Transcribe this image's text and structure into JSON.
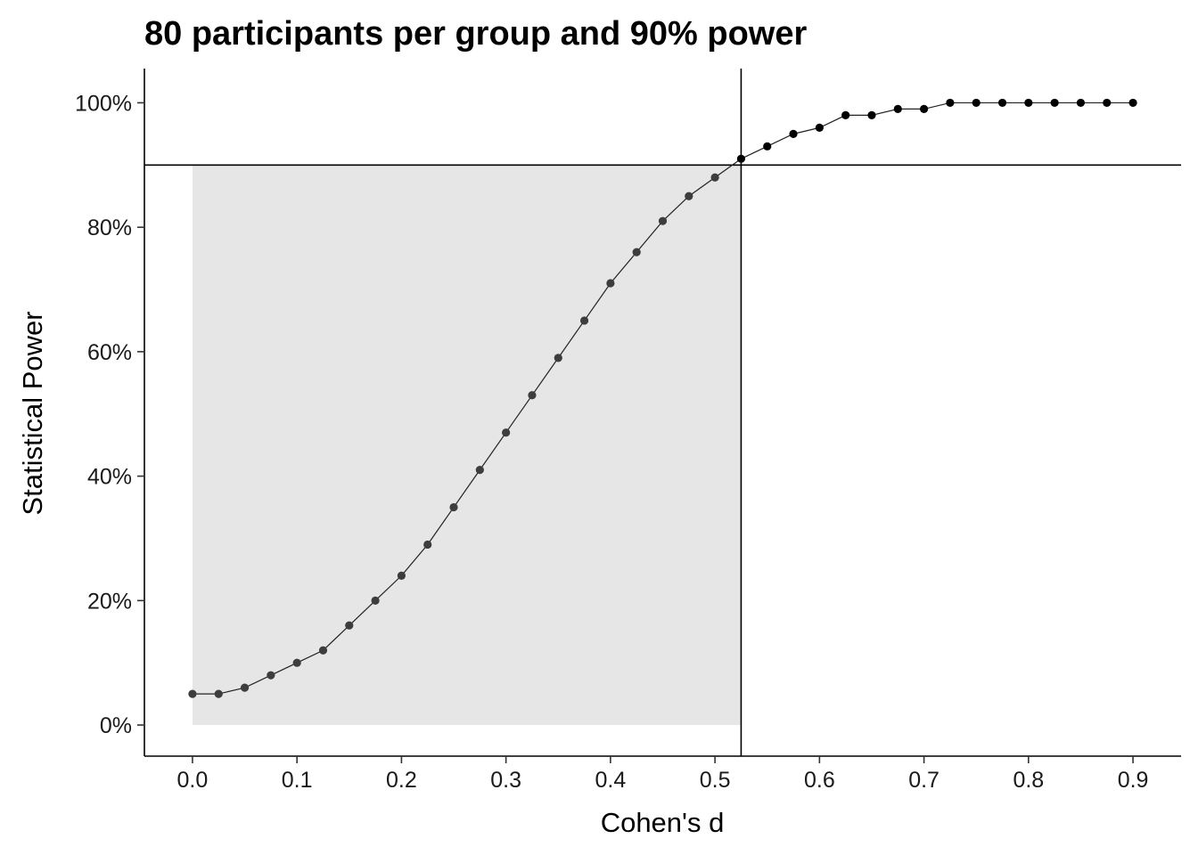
{
  "chart_data": {
    "type": "line",
    "title": "80 participants per group and 90% power",
    "xlabel": "Cohen's d",
    "ylabel": "Statistical Power",
    "xlim": [
      -0.046,
      0.946
    ],
    "ylim": [
      -0.05,
      1.055
    ],
    "x_ticks": [
      0.0,
      0.1,
      0.2,
      0.3,
      0.4,
      0.5,
      0.6,
      0.7,
      0.8,
      0.9
    ],
    "x_tick_labels": [
      "0.0",
      "0.1",
      "0.2",
      "0.3",
      "0.4",
      "0.5",
      "0.6",
      "0.7",
      "0.8",
      "0.9"
    ],
    "y_ticks": [
      0,
      0.2,
      0.4,
      0.6,
      0.8,
      1.0
    ],
    "y_tick_labels": [
      "0%",
      "20%",
      "40%",
      "60%",
      "80%",
      "100%"
    ],
    "grid": false,
    "reference_lines": {
      "power_target": 0.9,
      "effect_size": 0.525
    },
    "shaded_region": {
      "x": [
        0,
        0.525
      ],
      "y": [
        0,
        0.9
      ],
      "color": "#e6e6e6"
    },
    "series": [
      {
        "x": [
          0,
          0.025,
          0.05,
          0.075,
          0.1,
          0.125,
          0.15,
          0.175,
          0.2,
          0.225,
          0.25,
          0.275,
          0.3,
          0.325,
          0.35,
          0.375,
          0.4,
          0.425,
          0.45,
          0.475,
          0.5,
          0.525,
          0.55,
          0.575,
          0.6,
          0.625,
          0.65,
          0.675,
          0.7,
          0.725,
          0.75,
          0.775,
          0.8,
          0.825,
          0.85,
          0.875,
          0.9
        ],
        "y": [
          0.05,
          0.05,
          0.06,
          0.08,
          0.1,
          0.12,
          0.16,
          0.2,
          0.24,
          0.29,
          0.35,
          0.41,
          0.47,
          0.53,
          0.59,
          0.65,
          0.71,
          0.76,
          0.81,
          0.85,
          0.88,
          0.91,
          0.93,
          0.95,
          0.96,
          0.98,
          0.98,
          0.99,
          0.99,
          1.0,
          1.0,
          1.0,
          1.0,
          1.0,
          1.0,
          1.0,
          1.0
        ]
      }
    ]
  }
}
